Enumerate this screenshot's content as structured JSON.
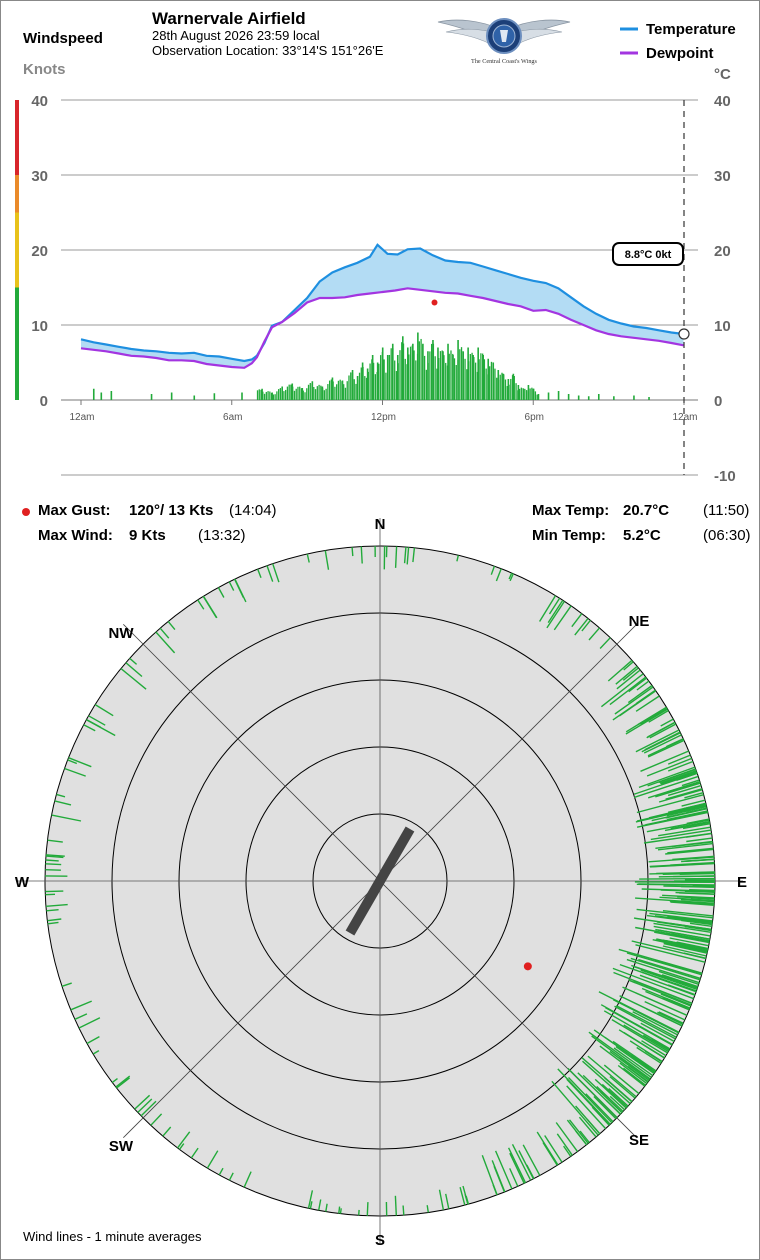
{
  "header": {
    "windspeed_label": "Windspeed",
    "knots_label": "Knots",
    "title": "Warnervale Airfield",
    "datetime": "28th August 2026  23:59 local",
    "location": "Observation Location: 33°14'S 151°26'E",
    "logo_caption": "The Central Coast's Wings"
  },
  "legend": {
    "temperature": "Temperature",
    "dewpoint": "Dewpoint"
  },
  "colors": {
    "temperature": "#1e8fe0",
    "dewpoint": "#a335e0",
    "band": "#b3dcf4",
    "wind": "#22aa3a",
    "gust": "#e02020"
  },
  "current": {
    "label": "8.8°C  0kt",
    "temperature": 8.8,
    "windspeed": 0
  },
  "chart_data": {
    "type": "line",
    "title": "",
    "xlabel": "",
    "ylabel": "Knots",
    "y2label": "°C",
    "x_ticks": [
      "12am",
      "6am",
      "12pm",
      "6pm",
      "12am"
    ],
    "xlim_hours": [
      0,
      24
    ],
    "y_left_ticks": [
      0,
      10,
      20,
      30,
      40
    ],
    "y_right_ticks": [
      -10,
      0,
      10,
      20,
      30,
      40
    ],
    "ylim_knots": [
      0,
      40
    ],
    "ylim_celsius": [
      -10,
      40
    ],
    "grid": true,
    "legend_position": "top-right",
    "series": [
      {
        "name": "Temperature",
        "unit": "°C",
        "x": [
          0,
          0.5,
          1,
          1.5,
          2,
          2.5,
          3,
          3.5,
          4,
          4.5,
          5,
          5.5,
          6,
          6.5,
          6.8,
          7,
          7.3,
          7.6,
          8,
          8.5,
          9,
          9.5,
          10,
          10.5,
          11,
          11.5,
          11.8,
          12.2,
          12.6,
          13,
          13.5,
          14,
          14.5,
          15,
          15.5,
          16,
          16.5,
          17,
          17.5,
          18,
          18.5,
          19,
          19.5,
          20,
          20.5,
          21,
          21.5,
          22,
          22.5,
          23,
          23.5,
          23.98
        ],
        "values": [
          8.1,
          7.7,
          7.4,
          7.1,
          6.8,
          6.6,
          6.5,
          6.3,
          6.2,
          6.3,
          5.9,
          5.8,
          5.5,
          5.2,
          5.4,
          5.9,
          7.6,
          9.9,
          10.4,
          12.0,
          13.6,
          15.8,
          17.0,
          17.7,
          18.3,
          19.1,
          20.7,
          19.5,
          19.4,
          20.1,
          20.2,
          19.3,
          18.6,
          18.4,
          18.3,
          17.8,
          17.3,
          16.8,
          16.3,
          15.9,
          15.6,
          14.9,
          13.7,
          12.5,
          11.5,
          10.7,
          10.2,
          9.8,
          9.6,
          9.3,
          9.0,
          8.8
        ]
      },
      {
        "name": "Dewpoint",
        "unit": "°C",
        "x": [
          0,
          0.5,
          1,
          1.5,
          2,
          2.5,
          3,
          3.5,
          4,
          4.5,
          5,
          5.5,
          6,
          6.5,
          6.8,
          7,
          7.3,
          7.6,
          8,
          8.5,
          9,
          9.5,
          10,
          10.5,
          11,
          11.5,
          12,
          12.5,
          13,
          13.5,
          14,
          14.5,
          15,
          15.5,
          16,
          16.5,
          17,
          17.5,
          18,
          18.5,
          19,
          19.5,
          20,
          20.5,
          21,
          21.5,
          22,
          22.5,
          23,
          23.5,
          23.98
        ],
        "values": [
          6.9,
          6.7,
          6.5,
          6.2,
          5.9,
          5.8,
          5.6,
          5.3,
          5.3,
          5.2,
          4.8,
          4.6,
          4.4,
          4.3,
          4.9,
          5.7,
          7.8,
          9.7,
          10.4,
          11.6,
          13.0,
          13.6,
          13.6,
          13.7,
          14.0,
          14.2,
          14.4,
          14.6,
          14.9,
          14.7,
          14.5,
          14.3,
          14.2,
          13.9,
          13.6,
          13.2,
          12.8,
          12.5,
          11.9,
          12.0,
          11.5,
          10.7,
          10.0,
          9.3,
          8.8,
          8.5,
          8.3,
          8.1,
          7.9,
          7.6,
          7.3
        ]
      },
      {
        "name": "Windspeed",
        "unit": "kt",
        "x": [
          0.5,
          0.8,
          1.2,
          2.8,
          3.6,
          4.5,
          5.3,
          6.4,
          7.2,
          7.6,
          8.0,
          8.4,
          8.8,
          9.2,
          9.6,
          10.0,
          10.4,
          10.8,
          11.0,
          11.2,
          11.4,
          11.6,
          11.8,
          12.0,
          12.2,
          12.4,
          12.6,
          12.8,
          13.0,
          13.2,
          13.4,
          13.6,
          13.8,
          14.0,
          14.2,
          14.4,
          14.6,
          14.8,
          15.0,
          15.2,
          15.4,
          15.6,
          15.8,
          16.0,
          16.2,
          16.4,
          16.6,
          16.8,
          17.0,
          17.2,
          17.4,
          17.6,
          17.8,
          18.0,
          18.2,
          18.6,
          19.0,
          19.4,
          19.8,
          20.2,
          20.6,
          21.2,
          22.0,
          22.6
        ],
        "values": [
          1.5,
          1.0,
          1.2,
          0.8,
          1.0,
          0.6,
          0.9,
          1.0,
          1.5,
          1.0,
          1.8,
          2.2,
          1.6,
          2.5,
          1.8,
          3.0,
          2.6,
          4.0,
          3.2,
          5.0,
          4.2,
          6.0,
          5.0,
          7.0,
          6.0,
          7.5,
          6.0,
          8.5,
          7.0,
          7.5,
          9.0,
          7.5,
          6.5,
          8.0,
          7.0,
          6.5,
          7.5,
          6.0,
          8.0,
          6.5,
          7.0,
          6.0,
          7.0,
          6.0,
          5.5,
          5.0,
          4.0,
          3.5,
          2.8,
          3.5,
          2.0,
          1.5,
          2.0,
          1.5,
          0.8,
          1.0,
          1.2,
          0.8,
          0.6,
          0.5,
          0.8,
          0.5,
          0.6,
          0.4
        ]
      }
    ],
    "max_gust_point": {
      "hour": 14.07,
      "knots": 13
    }
  },
  "stats": {
    "max_gust": {
      "label": "Max Gust:",
      "value": "120°/  13 Kts",
      "time": "(14:04)"
    },
    "max_wind": {
      "label": "Max Wind:",
      "value": "9 Kts",
      "time": "(13:32)"
    },
    "max_temp": {
      "label": "Max Temp:",
      "value": "20.7°C",
      "time": "(11:50)"
    },
    "min_temp": {
      "label": "Min Temp:",
      "value": "5.2°C",
      "time": "(06:30)"
    }
  },
  "rose": {
    "note": "Wind lines - 1 minute averages",
    "compass": [
      "N",
      "NE",
      "E",
      "SE",
      "S",
      "SW",
      "W",
      "NW"
    ],
    "rings_knots": [
      5,
      10,
      15,
      20,
      25
    ],
    "max_knots": 25,
    "runway_heading_deg": 30,
    "max_gust": {
      "direction_deg": 120,
      "knots": 13
    },
    "direction_sectors": [
      {
        "from_deg": 0,
        "to_deg": 10,
        "count": 6,
        "avg_knots": 1.2
      },
      {
        "from_deg": 10,
        "to_deg": 30,
        "count": 5,
        "avg_knots": 1.0
      },
      {
        "from_deg": 30,
        "to_deg": 50,
        "count": 12,
        "avg_knots": 1.5
      },
      {
        "from_deg": 50,
        "to_deg": 70,
        "count": 34,
        "avg_knots": 2.5
      },
      {
        "from_deg": 70,
        "to_deg": 85,
        "count": 48,
        "avg_knots": 3.4
      },
      {
        "from_deg": 85,
        "to_deg": 100,
        "count": 55,
        "avg_knots": 3.8
      },
      {
        "from_deg": 100,
        "to_deg": 120,
        "count": 60,
        "avg_knots": 4.2
      },
      {
        "from_deg": 120,
        "to_deg": 140,
        "count": 55,
        "avg_knots": 3.6
      },
      {
        "from_deg": 140,
        "to_deg": 160,
        "count": 22,
        "avg_knots": 2.0
      },
      {
        "from_deg": 160,
        "to_deg": 200,
        "count": 18,
        "avg_knots": 1.0
      },
      {
        "from_deg": 200,
        "to_deg": 240,
        "count": 16,
        "avg_knots": 1.0
      },
      {
        "from_deg": 240,
        "to_deg": 280,
        "count": 18,
        "avg_knots": 1.3
      },
      {
        "from_deg": 280,
        "to_deg": 320,
        "count": 16,
        "avg_knots": 1.6
      },
      {
        "from_deg": 320,
        "to_deg": 350,
        "count": 12,
        "avg_knots": 1.2
      },
      {
        "from_deg": 350,
        "to_deg": 360,
        "count": 4,
        "avg_knots": 1.0
      }
    ]
  }
}
